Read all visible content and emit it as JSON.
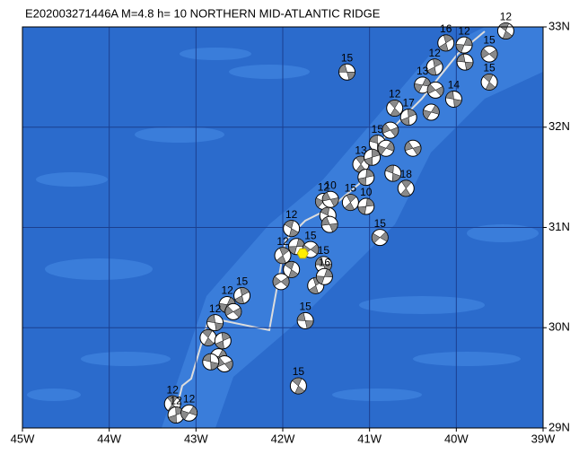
{
  "title": "E202003271446A M=4.8 h= 10 NORTHERN MID-ATLANTIC RIDGE",
  "map": {
    "xlim": [
      -45,
      -39
    ],
    "ylim": [
      29,
      33
    ],
    "xticks": [
      {
        "value": -45,
        "label": "45W"
      },
      {
        "value": -44,
        "label": "44W"
      },
      {
        "value": -43,
        "label": "43W"
      },
      {
        "value": -42,
        "label": "42W"
      },
      {
        "value": -41,
        "label": "41W"
      },
      {
        "value": -40,
        "label": "40W"
      },
      {
        "value": -39,
        "label": "39W"
      }
    ],
    "yticks": [
      {
        "value": 29,
        "label": "29N"
      },
      {
        "value": 30,
        "label": "30N"
      },
      {
        "value": 31,
        "label": "31N"
      },
      {
        "value": 32,
        "label": "32N"
      },
      {
        "value": 33,
        "label": "33N"
      }
    ],
    "epicenter": {
      "lon": -41.77,
      "lat": 30.74
    },
    "events": [
      {
        "lon": -41.26,
        "lat": 32.55,
        "depth": 15
      },
      {
        "lon": -39.43,
        "lat": 32.96,
        "depth": 12
      },
      {
        "lon": -40.12,
        "lat": 32.84,
        "depth": 16
      },
      {
        "lon": -39.91,
        "lat": 32.82,
        "depth": 12
      },
      {
        "lon": -39.62,
        "lat": 32.73,
        "depth": 15
      },
      {
        "lon": -39.9,
        "lat": 32.65,
        "depth": null
      },
      {
        "lon": -39.62,
        "lat": 32.45,
        "depth": 15
      },
      {
        "lon": -40.25,
        "lat": 32.6,
        "depth": 12
      },
      {
        "lon": -40.39,
        "lat": 32.42,
        "depth": 13
      },
      {
        "lon": -40.24,
        "lat": 32.37,
        "depth": null
      },
      {
        "lon": -40.03,
        "lat": 32.28,
        "depth": 14
      },
      {
        "lon": -40.71,
        "lat": 32.19,
        "depth": 12
      },
      {
        "lon": -40.55,
        "lat": 32.1,
        "depth": 17
      },
      {
        "lon": -40.29,
        "lat": 32.15,
        "depth": null
      },
      {
        "lon": -40.76,
        "lat": 31.97,
        "depth": null
      },
      {
        "lon": -40.91,
        "lat": 31.84,
        "depth": 15
      },
      {
        "lon": -41.1,
        "lat": 31.63,
        "depth": 13
      },
      {
        "lon": -40.97,
        "lat": 31.7,
        "depth": null
      },
      {
        "lon": -40.81,
        "lat": 31.79,
        "depth": null
      },
      {
        "lon": -40.5,
        "lat": 31.79,
        "depth": null
      },
      {
        "lon": -40.73,
        "lat": 31.54,
        "depth": null
      },
      {
        "lon": -40.58,
        "lat": 31.39,
        "depth": 18
      },
      {
        "lon": -41.04,
        "lat": 31.5,
        "depth": null
      },
      {
        "lon": -41.53,
        "lat": 31.26,
        "depth": 12
      },
      {
        "lon": -41.45,
        "lat": 31.28,
        "depth": 10
      },
      {
        "lon": -41.48,
        "lat": 31.12,
        "depth": null
      },
      {
        "lon": -41.22,
        "lat": 31.25,
        "depth": 15
      },
      {
        "lon": -41.04,
        "lat": 31.21,
        "depth": 10
      },
      {
        "lon": -40.88,
        "lat": 30.9,
        "depth": 15
      },
      {
        "lon": -41.46,
        "lat": 31.03,
        "depth": null
      },
      {
        "lon": -41.9,
        "lat": 30.99,
        "depth": 12
      },
      {
        "lon": -42.0,
        "lat": 30.72,
        "depth": 12
      },
      {
        "lon": -41.84,
        "lat": 30.81,
        "depth": null
      },
      {
        "lon": -41.68,
        "lat": 30.78,
        "depth": 15
      },
      {
        "lon": -41.53,
        "lat": 30.63,
        "depth": 15
      },
      {
        "lon": -41.9,
        "lat": 30.58,
        "depth": null
      },
      {
        "lon": -41.62,
        "lat": 30.42,
        "depth": null
      },
      {
        "lon": -41.52,
        "lat": 30.51,
        "depth": 16
      },
      {
        "lon": -42.02,
        "lat": 30.46,
        "depth": null
      },
      {
        "lon": -41.74,
        "lat": 30.07,
        "depth": 15
      },
      {
        "lon": -41.82,
        "lat": 29.42,
        "depth": 15
      },
      {
        "lon": -42.47,
        "lat": 30.32,
        "depth": 15
      },
      {
        "lon": -42.64,
        "lat": 30.23,
        "depth": 12
      },
      {
        "lon": -42.57,
        "lat": 30.16,
        "depth": null
      },
      {
        "lon": -42.78,
        "lat": 30.05,
        "depth": 12
      },
      {
        "lon": -42.86,
        "lat": 29.9,
        "depth": null
      },
      {
        "lon": -42.69,
        "lat": 29.87,
        "depth": null
      },
      {
        "lon": -42.74,
        "lat": 29.71,
        "depth": null
      },
      {
        "lon": -42.67,
        "lat": 29.64,
        "depth": null
      },
      {
        "lon": -42.83,
        "lat": 29.66,
        "depth": null
      },
      {
        "lon": -43.27,
        "lat": 29.24,
        "depth": 12
      },
      {
        "lon": -43.23,
        "lat": 29.13,
        "depth": 12
      },
      {
        "lon": -43.08,
        "lat": 29.15,
        "depth": 12
      }
    ]
  }
}
